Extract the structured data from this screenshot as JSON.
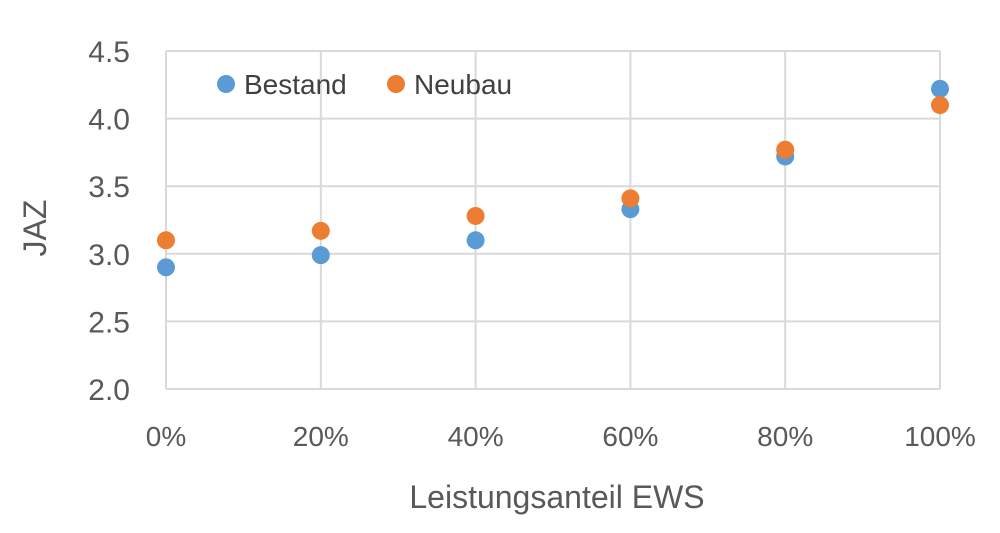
{
  "chart_data": {
    "type": "scatter",
    "title": "",
    "xlabel": "Leistungsanteil EWS",
    "ylabel": "JAZ",
    "x": [
      0,
      20,
      40,
      60,
      80,
      100
    ],
    "x_tick_labels": [
      "0%",
      "20%",
      "40%",
      "60%",
      "80%",
      "100%"
    ],
    "y_tick_labels": [
      "2.0",
      "2.5",
      "3.0",
      "3.5",
      "4.0",
      "4.5"
    ],
    "ylim": [
      2.0,
      4.5
    ],
    "xlim": [
      0,
      100
    ],
    "grid": true,
    "legend_position": "top-left",
    "series": [
      {
        "name": "Bestand",
        "color": "#5b9bd5",
        "values": [
          2.9,
          2.99,
          3.1,
          3.33,
          3.72,
          4.22
        ]
      },
      {
        "name": "Neubau",
        "color": "#ed7d31",
        "values": [
          3.1,
          3.17,
          3.28,
          3.41,
          3.77,
          4.1
        ]
      }
    ]
  }
}
